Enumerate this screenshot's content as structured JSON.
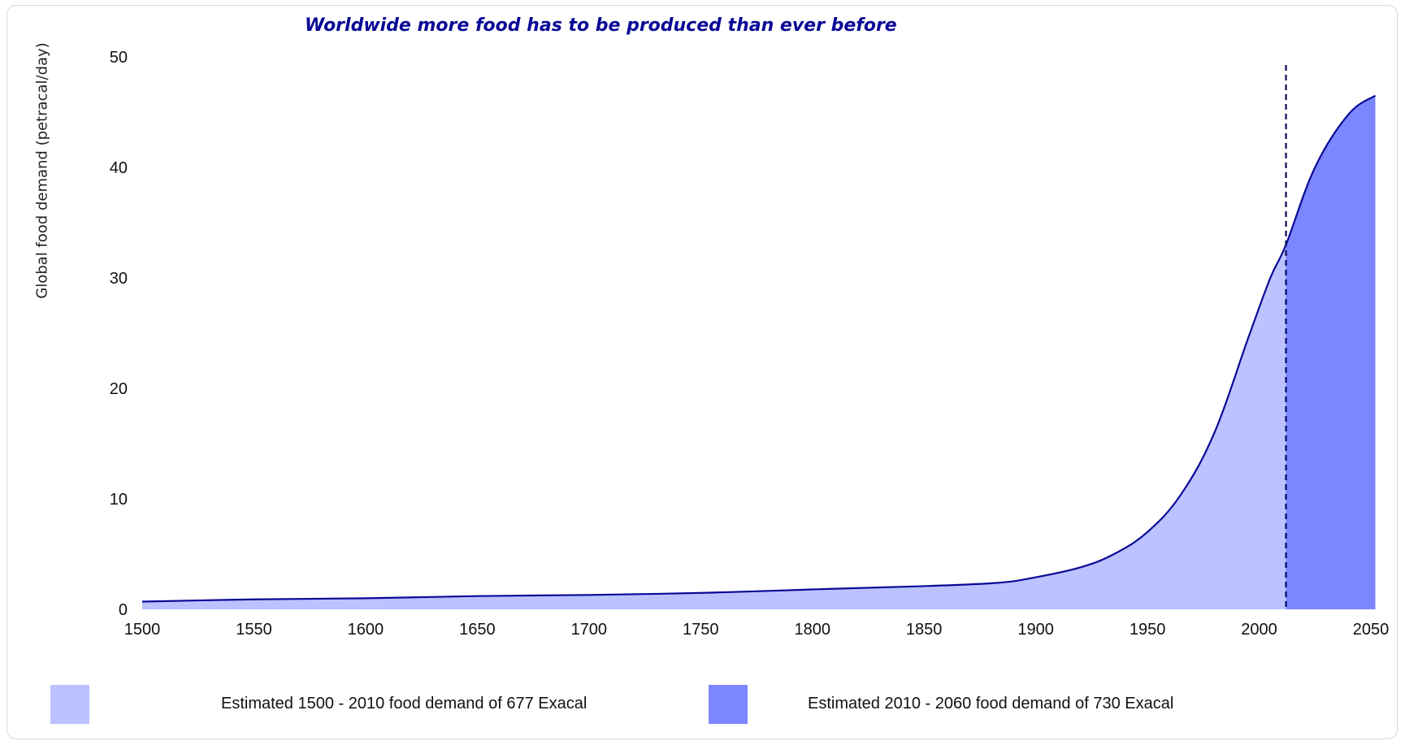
{
  "chart_data": {
    "type": "area",
    "title": "Worldwide more food has to be produced than ever before",
    "ylabel": "Global food demand (petracal/day)",
    "xlabel": "",
    "xlim": [
      1500,
      2055
    ],
    "ylim": [
      0,
      50
    ],
    "x_ticks": [
      "1500",
      "1550",
      "1600",
      "1650",
      "1700",
      "1750",
      "1800",
      "1850",
      "1900",
      "1950",
      "2000",
      "2050"
    ],
    "y_ticks": [
      "0",
      "10",
      "20",
      "30",
      "40",
      "50"
    ],
    "split_x": 2012,
    "x": [
      1500,
      1550,
      1600,
      1650,
      1700,
      1753,
      1800,
      1850,
      1883,
      1900,
      1920,
      1935,
      1950,
      1965,
      1980,
      1995,
      2005,
      2012,
      2025,
      2040,
      2052
    ],
    "values": [
      0.7,
      0.9,
      1.0,
      1.2,
      1.3,
      1.5,
      1.8,
      2.1,
      2.4,
      2.9,
      3.8,
      5.0,
      7.0,
      10.4,
      16.0,
      24.5,
      30.0,
      33.0,
      40.0,
      44.8,
      46.5
    ],
    "legend": [
      {
        "label": "Estimated 1500 - 2010 food demand of 677 Exacal",
        "color": "#bbc2ff"
      },
      {
        "label": "Estimated 2010 - 2060 food demand of 730 Exacal",
        "color": "#7b86ff"
      }
    ],
    "colors": {
      "line": "#0a0a96",
      "fill_past": "#bbc2ff",
      "fill_future": "#7b86ff",
      "divider": "#0a0a5a"
    }
  }
}
